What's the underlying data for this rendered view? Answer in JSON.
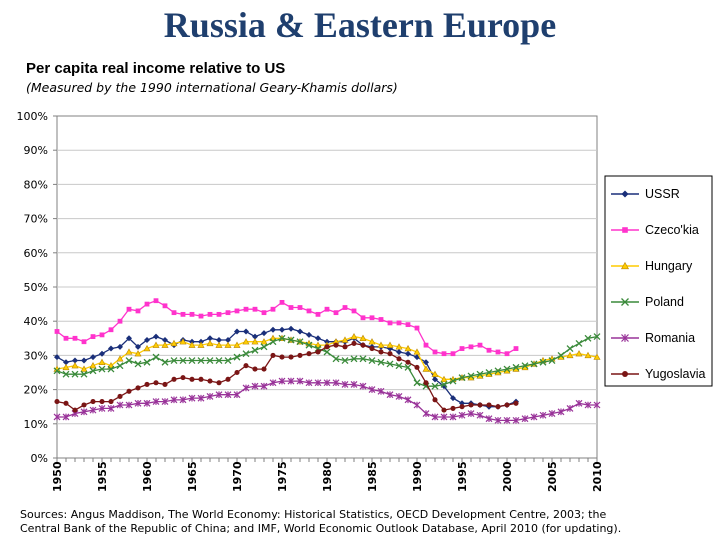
{
  "header": {
    "title": "Russia & Eastern Europe",
    "subtitle": "Per capita real income relative to US",
    "note": "(Measured by the 1990 international Geary-Khamis dollars)"
  },
  "sources": {
    "line1": "Sources: Angus Maddison, The World Economy: Historical Statistics, OECD Development Centre, 2003; the",
    "line2": "Central Bank of the Republic of China; and IMF, World Economic Outlook Database, April 2010 (for updating)."
  },
  "chart_data": {
    "type": "line",
    "title": "",
    "xlabel": "",
    "ylabel": "",
    "xlim": [
      1950,
      2010
    ],
    "ylim": [
      0,
      100
    ],
    "yticks": [
      "0%",
      "10%",
      "20%",
      "30%",
      "40%",
      "50%",
      "60%",
      "70%",
      "80%",
      "90%",
      "100%"
    ],
    "xticks": [
      "1950",
      "1955",
      "1960",
      "1965",
      "1970",
      "1975",
      "1980",
      "1985",
      "1990",
      "1995",
      "2000",
      "2005",
      "2010"
    ],
    "grid": "horizontal",
    "legend_position": "right",
    "series": [
      {
        "name": "USSR",
        "color": "#1a2f7a",
        "marker": "diamond",
        "x": [
          1950,
          1951,
          1952,
          1953,
          1954,
          1955,
          1956,
          1957,
          1958,
          1959,
          1960,
          1961,
          1962,
          1963,
          1964,
          1965,
          1966,
          1967,
          1968,
          1969,
          1970,
          1971,
          1972,
          1973,
          1974,
          1975,
          1976,
          1977,
          1978,
          1979,
          1980,
          1981,
          1982,
          1983,
          1984,
          1985,
          1986,
          1987,
          1988,
          1989,
          1990,
          1991,
          1992,
          1993,
          1994,
          1995,
          1996,
          1997,
          1998,
          1999,
          2000,
          2001
        ],
        "y": [
          29.5,
          28,
          28.5,
          28.5,
          29.5,
          30.5,
          32,
          32.5,
          35,
          32.5,
          34.5,
          35.5,
          34.5,
          33,
          34.5,
          34,
          34,
          35,
          34.5,
          34.5,
          37,
          37,
          35.5,
          36.5,
          37.5,
          37.5,
          37.8,
          37,
          36,
          35,
          34,
          34,
          34,
          35,
          33,
          32.5,
          32.5,
          32,
          31,
          30.5,
          29.5,
          28,
          23,
          21,
          17.5,
          16,
          16,
          15.5,
          15,
          15,
          15.5,
          16.5
        ]
      },
      {
        "name": "Czeco'kia",
        "color": "#ff33cc",
        "marker": "square",
        "x": [
          1950,
          1951,
          1952,
          1953,
          1954,
          1955,
          1956,
          1957,
          1958,
          1959,
          1960,
          1961,
          1962,
          1963,
          1964,
          1965,
          1966,
          1967,
          1968,
          1969,
          1970,
          1971,
          1972,
          1973,
          1974,
          1975,
          1976,
          1977,
          1978,
          1979,
          1980,
          1981,
          1982,
          1983,
          1984,
          1985,
          1986,
          1987,
          1988,
          1989,
          1990,
          1991,
          1992,
          1993,
          1994,
          1995,
          1996,
          1997,
          1998,
          1999,
          2000,
          2001
        ],
        "y": [
          37,
          35,
          35,
          34,
          35.5,
          36,
          37.5,
          40,
          43.5,
          43,
          45,
          46,
          44.5,
          42.5,
          42,
          42,
          41.5,
          42,
          42,
          42.5,
          43,
          43.5,
          43.5,
          42.5,
          43.5,
          45.5,
          44,
          44,
          43,
          42,
          43.5,
          42.5,
          44,
          43,
          41,
          41,
          40.5,
          39.5,
          39.5,
          39,
          38,
          33,
          31,
          30.5,
          30.5,
          32,
          32.5,
          33,
          31.5,
          31,
          30.5,
          32
        ]
      },
      {
        "name": "Hungary",
        "color": "#ffcc00",
        "marker": "triangle",
        "x": [
          1950,
          1951,
          1952,
          1953,
          1954,
          1955,
          1956,
          1957,
          1958,
          1959,
          1960,
          1961,
          1962,
          1963,
          1964,
          1965,
          1966,
          1967,
          1968,
          1969,
          1970,
          1971,
          1972,
          1973,
          1974,
          1975,
          1976,
          1977,
          1978,
          1979,
          1980,
          1981,
          1982,
          1983,
          1984,
          1985,
          1986,
          1987,
          1988,
          1989,
          1990,
          1991,
          1992,
          1993,
          1994,
          1995,
          1996,
          1997,
          1998,
          1999,
          2000,
          2001,
          2002,
          2003,
          2004,
          2005,
          2006,
          2007,
          2008,
          2009,
          2010
        ],
        "y": [
          26,
          26.5,
          27,
          26,
          27,
          28,
          27,
          29,
          31,
          30.5,
          32,
          33,
          33,
          33.5,
          34,
          33,
          33,
          33.5,
          33,
          33,
          33,
          34,
          34,
          34,
          35,
          35,
          34.5,
          34,
          33.5,
          33,
          33,
          34,
          34.5,
          35.5,
          35,
          34,
          33,
          33,
          32.5,
          32,
          31,
          26,
          24.5,
          23,
          23,
          23.5,
          23.5,
          24,
          24.5,
          25,
          25.5,
          26,
          26.5,
          27.5,
          28.5,
          29,
          29.5,
          30,
          30.5,
          30,
          29.5
        ]
      },
      {
        "name": "Poland",
        "color": "#3a8a3a",
        "marker": "x",
        "x": [
          1950,
          1951,
          1952,
          1953,
          1954,
          1955,
          1956,
          1957,
          1958,
          1959,
          1960,
          1961,
          1962,
          1963,
          1964,
          1965,
          1966,
          1967,
          1968,
          1969,
          1970,
          1971,
          1972,
          1973,
          1974,
          1975,
          1976,
          1977,
          1978,
          1979,
          1980,
          1981,
          1982,
          1983,
          1984,
          1985,
          1986,
          1987,
          1988,
          1989,
          1990,
          1991,
          1992,
          1993,
          1994,
          1995,
          1996,
          1997,
          1998,
          1999,
          2000,
          2001,
          2002,
          2003,
          2004,
          2005,
          2006,
          2007,
          2008,
          2009,
          2010
        ],
        "y": [
          25.5,
          24.5,
          24.5,
          24.5,
          25.5,
          26,
          26,
          27,
          28.5,
          27.5,
          28,
          29.5,
          28,
          28.5,
          28.5,
          28.5,
          28.5,
          28.5,
          28.5,
          28.5,
          29.5,
          30.5,
          31.5,
          32.5,
          34,
          35,
          34.5,
          34,
          33,
          32,
          31,
          29,
          28.5,
          29,
          29,
          28.5,
          28,
          27.5,
          27,
          26.5,
          22,
          21,
          21,
          21.5,
          22.5,
          23.5,
          24,
          24.5,
          25,
          25.5,
          26,
          26.5,
          27,
          27.5,
          28,
          28.5,
          30,
          32,
          33.5,
          35,
          35.5
        ]
      },
      {
        "name": "Romania",
        "color": "#993399",
        "marker": "star",
        "x": [
          1950,
          1951,
          1952,
          1953,
          1954,
          1955,
          1956,
          1957,
          1958,
          1959,
          1960,
          1961,
          1962,
          1963,
          1964,
          1965,
          1966,
          1967,
          1968,
          1969,
          1970,
          1971,
          1972,
          1973,
          1974,
          1975,
          1976,
          1977,
          1978,
          1979,
          1980,
          1981,
          1982,
          1983,
          1984,
          1985,
          1986,
          1987,
          1988,
          1989,
          1990,
          1991,
          1992,
          1993,
          1994,
          1995,
          1996,
          1997,
          1998,
          1999,
          2000,
          2001,
          2002,
          2003,
          2004,
          2005,
          2006,
          2007,
          2008,
          2009,
          2010
        ],
        "y": [
          12,
          12,
          13,
          13.5,
          14,
          14.5,
          14.5,
          15.5,
          15.5,
          16,
          16,
          16.5,
          16.5,
          17,
          17,
          17.5,
          17.5,
          18,
          18.5,
          18.5,
          18.5,
          20.5,
          21,
          21,
          22,
          22.5,
          22.5,
          22.5,
          22,
          22,
          22,
          22,
          21.5,
          21.5,
          21,
          20,
          19.5,
          18.5,
          18,
          17,
          15.5,
          13,
          12,
          12,
          12,
          12.5,
          13,
          12.5,
          11.5,
          11,
          11,
          11,
          11.5,
          12,
          12.5,
          13,
          13.5,
          14.5,
          16,
          15.5,
          15.5
        ]
      },
      {
        "name": "Yugoslavia",
        "color": "#7a1515",
        "marker": "circle",
        "x": [
          1950,
          1951,
          1952,
          1953,
          1954,
          1955,
          1956,
          1957,
          1958,
          1959,
          1960,
          1961,
          1962,
          1963,
          1964,
          1965,
          1966,
          1967,
          1968,
          1969,
          1970,
          1971,
          1972,
          1973,
          1974,
          1975,
          1976,
          1977,
          1978,
          1979,
          1980,
          1981,
          1982,
          1983,
          1984,
          1985,
          1986,
          1987,
          1988,
          1989,
          1990,
          1991,
          1992,
          1993,
          1994,
          1995,
          1996,
          1997,
          1998,
          1999,
          2000,
          2001
        ],
        "y": [
          16.5,
          16,
          14,
          15.5,
          16.5,
          16.5,
          16.5,
          18,
          19.5,
          20.5,
          21.5,
          22,
          21.5,
          23,
          23.5,
          23,
          23,
          22.5,
          22,
          23,
          25,
          27,
          26,
          26,
          30,
          29.5,
          29.5,
          30,
          30.5,
          31,
          32.5,
          33,
          32.5,
          33.5,
          33,
          32,
          31,
          30.5,
          29,
          28,
          26.5,
          22,
          17,
          14,
          14.5,
          15,
          15.5,
          15.5,
          15.5,
          15,
          15.5,
          16
        ]
      }
    ]
  }
}
